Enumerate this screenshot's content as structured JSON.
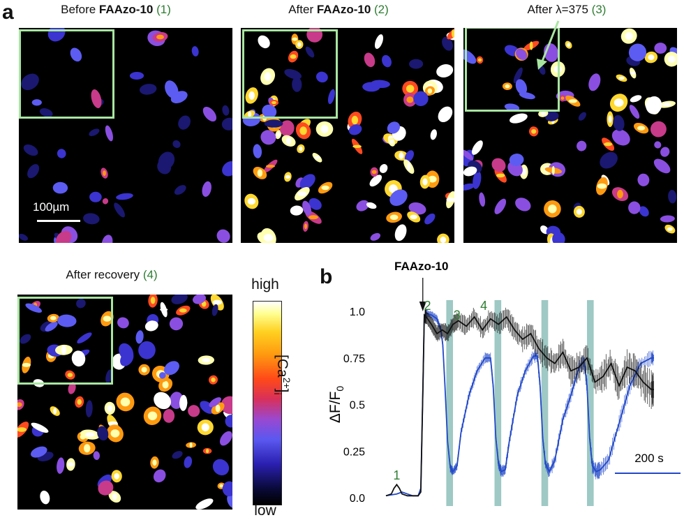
{
  "panel_a": {
    "letter": "a",
    "images": [
      {
        "title_pre": "Before ",
        "title_bold": "FAAzo-10",
        "title_num": " (1)",
        "seed": 11,
        "density": 0.45,
        "bright": 0.15
      },
      {
        "title_pre": "After ",
        "title_bold": "FAAzo-10",
        "title_num": " (2)",
        "seed": 23,
        "density": 1.0,
        "bright": 0.75
      },
      {
        "title_pre": "After λ=375",
        "title_bold": "",
        "title_num": " (3)",
        "seed": 37,
        "density": 0.9,
        "bright": 0.6
      },
      {
        "title_pre": "After recovery",
        "title_bold": "",
        "title_num": " (4)",
        "seed": 53,
        "density": 1.0,
        "bright": 0.7
      }
    ],
    "scale_bar_label": "100µm",
    "colorbar": {
      "high": "high",
      "low": "low",
      "label_main": "[Ca",
      "label_sup": "2+",
      "label_close": "]",
      "label_sub": "i"
    }
  },
  "panel_b": {
    "letter": "b",
    "drug_label": "FAAzo-10",
    "time_scale_label": "200 s",
    "event_numbers": [
      "1",
      "2",
      "3",
      "4"
    ],
    "colors": {
      "blue": "#2148c9",
      "black": "#111111",
      "bands": "#9ec9c4",
      "numbers": "#2e7d32"
    }
  },
  "chart_data": {
    "type": "line",
    "title": "",
    "xlabel": "",
    "ylabel": "ΔF/F0",
    "ylim": [
      0,
      1.08
    ],
    "yticks": [
      0.0,
      0.25,
      0.5,
      0.75,
      1.0
    ],
    "ytick_labels": [
      "0.0",
      "0.25",
      "0.5",
      "0.75",
      "1.0"
    ],
    "x_unit": "s",
    "xlim": [
      0,
      1230
    ],
    "drug_application_s": 140,
    "light_bands_s": [
      [
        225,
        250
      ],
      [
        405,
        430
      ],
      [
        580,
        605
      ],
      [
        750,
        775
      ]
    ],
    "series": [
      {
        "color": "blue",
        "x": [
          0,
          40,
          60,
          80,
          100,
          120,
          130,
          138,
          143,
          150,
          170,
          190,
          205,
          212,
          220,
          230,
          240,
          250,
          265,
          280,
          310,
          340,
          370,
          390,
          400,
          410,
          420,
          430,
          445,
          460,
          490,
          520,
          550,
          565,
          575,
          585,
          595,
          610,
          630,
          660,
          690,
          720,
          740,
          750,
          760,
          770,
          785,
          800,
          830,
          870,
          910,
          950,
          990,
          1000
        ],
        "y": [
          0.01,
          0.02,
          0.03,
          0.02,
          0.01,
          0.01,
          0.05,
          0.6,
          0.97,
          0.99,
          0.98,
          0.96,
          0.9,
          0.82,
          0.6,
          0.3,
          0.16,
          0.14,
          0.17,
          0.35,
          0.55,
          0.68,
          0.75,
          0.75,
          0.6,
          0.32,
          0.18,
          0.14,
          0.15,
          0.3,
          0.55,
          0.68,
          0.76,
          0.76,
          0.6,
          0.32,
          0.18,
          0.14,
          0.2,
          0.42,
          0.55,
          0.7,
          0.73,
          0.6,
          0.32,
          0.17,
          0.14,
          0.15,
          0.2,
          0.4,
          0.6,
          0.72,
          0.75,
          0.75
        ]
      },
      {
        "color": "black",
        "x": [
          0,
          20,
          30,
          40,
          50,
          60,
          80,
          100,
          120,
          130,
          138,
          143,
          150,
          170,
          190,
          210,
          230,
          250,
          270,
          300,
          330,
          360,
          390,
          420,
          450,
          480,
          510,
          540,
          570,
          600,
          630,
          660,
          690,
          720,
          750,
          780,
          810,
          840,
          870,
          900,
          930,
          960,
          990,
          1000
        ],
        "y": [
          0.01,
          0.02,
          0.05,
          0.07,
          0.05,
          0.02,
          0.01,
          0.01,
          0.01,
          0.03,
          0.6,
          0.98,
          0.97,
          0.93,
          0.88,
          0.9,
          0.88,
          0.93,
          0.95,
          0.92,
          0.97,
          0.9,
          0.96,
          0.93,
          0.97,
          0.9,
          0.85,
          0.88,
          0.8,
          0.75,
          0.72,
          0.78,
          0.68,
          0.7,
          0.75,
          0.62,
          0.65,
          0.72,
          0.6,
          0.7,
          0.68,
          0.62,
          0.58,
          0.58
        ]
      }
    ],
    "event_markers": [
      {
        "label": "1",
        "x_s": 40,
        "y": 0.12
      },
      {
        "label": "2",
        "x_s": 155,
        "y": 1.03
      },
      {
        "label": "3",
        "x_s": 265,
        "y": 0.98
      },
      {
        "label": "4",
        "x_s": 365,
        "y": 1.03
      }
    ]
  }
}
